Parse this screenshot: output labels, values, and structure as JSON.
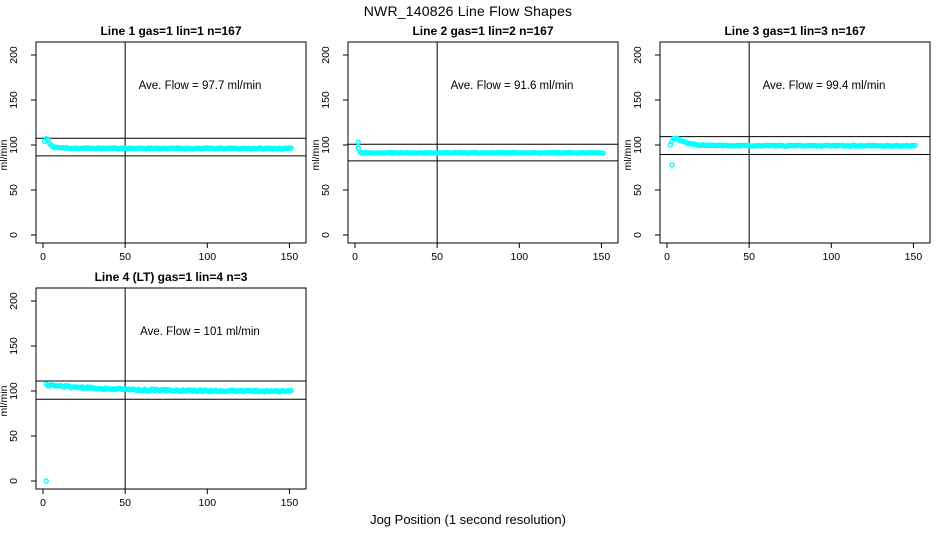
{
  "figure": {
    "title": "NWR_140826  Line Flow Shapes",
    "xlabel": "Jog Position (1 second resolution)",
    "background_color": "#FFFFFF",
    "point_color": "#00FFFF",
    "line_color": "#000000"
  },
  "chart_data": {
    "type": "scatter",
    "title": "NWR_140826  Line Flow Shapes",
    "xlabel": "Jog Position (1 second resolution)",
    "ylabel": "ml/min",
    "xlim": [
      -5,
      158
    ],
    "ylim": [
      -9,
      214
    ],
    "xticks": [
      0,
      50,
      100,
      150
    ],
    "yticks": [
      0,
      50,
      100,
      150,
      200
    ],
    "grid": false,
    "marker": "open-circle",
    "marker_color": "#00FFFF",
    "panels": [
      {
        "title": "Line 1 gas=1 lin=1 n=167",
        "line": "Line 1",
        "gas": 1,
        "lin": 1,
        "n": 167,
        "ave_flow": 97.7,
        "ave_flow_label": "Ave. Flow =  97.7  ml/min",
        "hlines": [
          107.5,
          87.9
        ],
        "vline": 50,
        "x_start": 1,
        "x_end": 151,
        "profile": [
          [
            1,
            104
          ],
          [
            2,
            107
          ],
          [
            3,
            106
          ],
          [
            4,
            101.5
          ],
          [
            5,
            99.3
          ],
          [
            7,
            97.6
          ],
          [
            10,
            96.9
          ],
          [
            20,
            96.4
          ],
          [
            60,
            96.3
          ],
          [
            151,
            96.1
          ]
        ],
        "noise": 0.5,
        "seed": 11,
        "outliers": []
      },
      {
        "title": "Line 2 gas=1 lin=2 n=167",
        "line": "Line 2",
        "gas": 1,
        "lin": 2,
        "n": 167,
        "ave_flow": 91.6,
        "ave_flow_label": "Ave. Flow =  91.6  ml/min",
        "hlines": [
          100.8,
          82.4
        ],
        "vline": 50,
        "x_start": 2,
        "x_end": 151,
        "profile": [
          [
            2,
            96.5
          ],
          [
            3,
            92.5
          ],
          [
            4,
            91.5
          ],
          [
            8,
            91.2
          ],
          [
            30,
            91.4
          ],
          [
            151,
            91.2
          ]
        ],
        "noise": 0.45,
        "seed": 22,
        "outliers": [
          [
            2,
            103
          ]
        ]
      },
      {
        "title": "Line 3 gas=1 lin=3 n=167",
        "line": "Line 3",
        "gas": 1,
        "lin": 3,
        "n": 167,
        "ave_flow": 99.4,
        "ave_flow_label": "Ave. Flow =  99.4  ml/min",
        "hlines": [
          109.3,
          89.5
        ],
        "vline": 50,
        "x_start": 2,
        "x_end": 151,
        "profile": [
          [
            2,
            100
          ],
          [
            3,
            104
          ],
          [
            4,
            107
          ],
          [
            5,
            108
          ],
          [
            6,
            107.2
          ],
          [
            8,
            105.2
          ],
          [
            10,
            103.6
          ],
          [
            13,
            101.8
          ],
          [
            17,
            100.5
          ],
          [
            22,
            99.8
          ],
          [
            30,
            99.4
          ],
          [
            50,
            99.2
          ],
          [
            151,
            99.1
          ]
        ],
        "noise": 0.5,
        "seed": 33,
        "outliers": [
          [
            3,
            78
          ]
        ]
      },
      {
        "title": "Line 4 (LT) gas=1 lin=4 n=3",
        "line": "Line 4 (LT)",
        "gas": 1,
        "lin": 4,
        "n": 3,
        "ave_flow": 101,
        "ave_flow_label": "Ave. Flow =  101  ml/min",
        "hlines": [
          111.1,
          90.9
        ],
        "vline": 50,
        "x_start": 2,
        "x_end": 151,
        "profile": [
          [
            2,
            107
          ],
          [
            4,
            106.6
          ],
          [
            8,
            105.9
          ],
          [
            15,
            104.9
          ],
          [
            25,
            103.7
          ],
          [
            40,
            102.4
          ],
          [
            60,
            101.3
          ],
          [
            85,
            100.6
          ],
          [
            115,
            100.1
          ],
          [
            151,
            99.8
          ]
        ],
        "noise": 1.0,
        "seed": 44,
        "outliers": [
          [
            2,
            0
          ]
        ]
      }
    ]
  }
}
